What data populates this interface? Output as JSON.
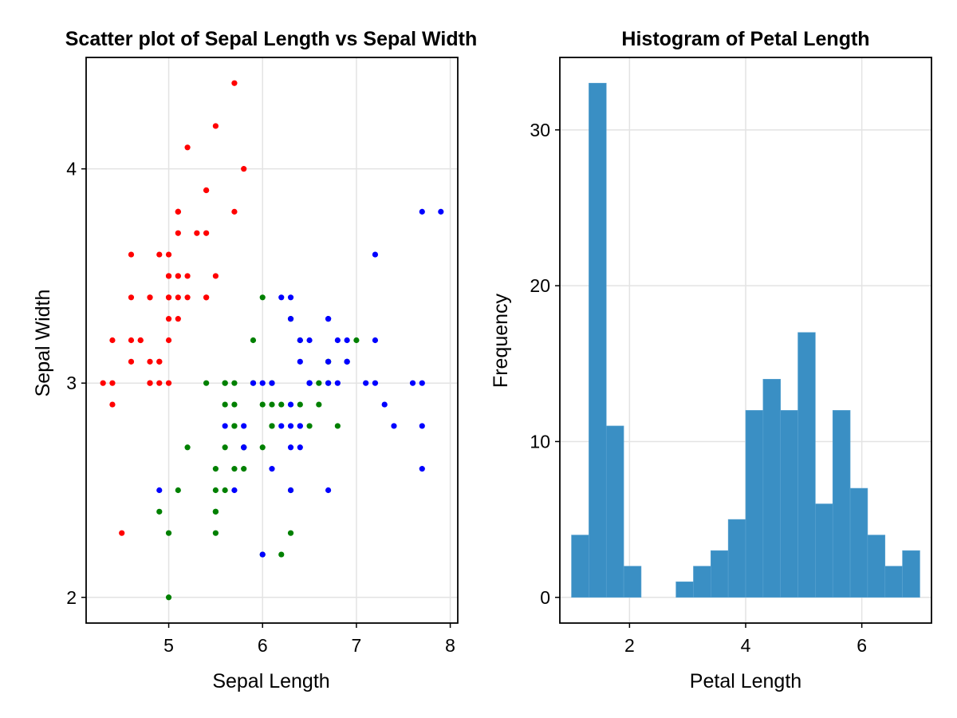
{
  "chart_data": [
    {
      "type": "scatter",
      "title": "Scatter plot of Sepal Length vs Sepal Width",
      "xlabel": "Sepal Length",
      "ylabel": "Sepal Width",
      "xlim": [
        4.12,
        8.08
      ],
      "ylim": [
        1.88,
        4.52
      ],
      "xticks": [
        5,
        6,
        7,
        8
      ],
      "yticks": [
        2,
        3,
        4
      ],
      "grid": true,
      "series": [
        {
          "color": "#ff0000",
          "points": [
            [
              5.1,
              3.5
            ],
            [
              4.9,
              3.0
            ],
            [
              4.7,
              3.2
            ],
            [
              4.6,
              3.1
            ],
            [
              5.0,
              3.6
            ],
            [
              5.4,
              3.9
            ],
            [
              4.6,
              3.4
            ],
            [
              5.0,
              3.4
            ],
            [
              4.4,
              2.9
            ],
            [
              4.9,
              3.1
            ],
            [
              5.4,
              3.7
            ],
            [
              4.8,
              3.4
            ],
            [
              4.8,
              3.0
            ],
            [
              4.3,
              3.0
            ],
            [
              5.8,
              4.0
            ],
            [
              5.7,
              4.4
            ],
            [
              5.4,
              3.9
            ],
            [
              5.1,
              3.5
            ],
            [
              5.7,
              3.8
            ],
            [
              5.1,
              3.8
            ],
            [
              5.4,
              3.4
            ],
            [
              5.1,
              3.7
            ],
            [
              4.6,
              3.6
            ],
            [
              5.1,
              3.3
            ],
            [
              4.8,
              3.4
            ],
            [
              5.0,
              3.0
            ],
            [
              5.0,
              3.4
            ],
            [
              5.2,
              3.5
            ],
            [
              5.2,
              3.4
            ],
            [
              4.7,
              3.2
            ],
            [
              4.8,
              3.1
            ],
            [
              5.4,
              3.4
            ],
            [
              5.2,
              4.1
            ],
            [
              5.5,
              4.2
            ],
            [
              4.9,
              3.1
            ],
            [
              5.0,
              3.2
            ],
            [
              5.5,
              3.5
            ],
            [
              4.9,
              3.6
            ],
            [
              4.4,
              3.0
            ],
            [
              5.1,
              3.4
            ],
            [
              5.0,
              3.5
            ],
            [
              4.5,
              2.3
            ],
            [
              4.4,
              3.2
            ],
            [
              5.0,
              3.5
            ],
            [
              5.1,
              3.8
            ],
            [
              4.8,
              3.0
            ],
            [
              5.1,
              3.8
            ],
            [
              4.6,
              3.2
            ],
            [
              5.3,
              3.7
            ],
            [
              5.0,
              3.3
            ]
          ]
        },
        {
          "color": "#008000",
          "points": [
            [
              7.0,
              3.2
            ],
            [
              6.4,
              3.2
            ],
            [
              6.9,
              3.1
            ],
            [
              5.5,
              2.3
            ],
            [
              6.5,
              2.8
            ],
            [
              5.7,
              2.8
            ],
            [
              6.3,
              3.3
            ],
            [
              4.9,
              2.4
            ],
            [
              6.6,
              2.9
            ],
            [
              5.2,
              2.7
            ],
            [
              5.0,
              2.0
            ],
            [
              5.9,
              3.0
            ],
            [
              6.0,
              2.2
            ],
            [
              6.1,
              2.9
            ],
            [
              5.6,
              2.9
            ],
            [
              6.7,
              3.1
            ],
            [
              5.6,
              3.0
            ],
            [
              5.8,
              2.7
            ],
            [
              6.2,
              2.2
            ],
            [
              5.6,
              2.5
            ],
            [
              5.9,
              3.2
            ],
            [
              6.1,
              2.8
            ],
            [
              6.3,
              2.5
            ],
            [
              6.1,
              2.8
            ],
            [
              6.4,
              2.9
            ],
            [
              6.6,
              3.0
            ],
            [
              6.8,
              2.8
            ],
            [
              6.7,
              3.0
            ],
            [
              6.0,
              2.9
            ],
            [
              5.7,
              2.6
            ],
            [
              5.5,
              2.4
            ],
            [
              5.5,
              2.4
            ],
            [
              5.8,
              2.7
            ],
            [
              6.0,
              2.7
            ],
            [
              5.4,
              3.0
            ],
            [
              6.0,
              3.4
            ],
            [
              6.7,
              3.1
            ],
            [
              6.3,
              2.3
            ],
            [
              5.6,
              3.0
            ],
            [
              5.5,
              2.5
            ],
            [
              5.5,
              2.6
            ],
            [
              6.1,
              3.0
            ],
            [
              5.8,
              2.6
            ],
            [
              5.0,
              2.3
            ],
            [
              5.6,
              2.7
            ],
            [
              5.7,
              3.0
            ],
            [
              5.7,
              2.9
            ],
            [
              6.2,
              2.9
            ],
            [
              5.1,
              2.5
            ],
            [
              5.7,
              2.8
            ]
          ]
        },
        {
          "color": "#0000ff",
          "points": [
            [
              6.3,
              3.3
            ],
            [
              5.8,
              2.7
            ],
            [
              7.1,
              3.0
            ],
            [
              6.3,
              2.9
            ],
            [
              6.5,
              3.0
            ],
            [
              7.6,
              3.0
            ],
            [
              4.9,
              2.5
            ],
            [
              7.3,
              2.9
            ],
            [
              6.7,
              2.5
            ],
            [
              7.2,
              3.6
            ],
            [
              6.5,
              3.2
            ],
            [
              6.4,
              2.7
            ],
            [
              6.8,
              3.0
            ],
            [
              5.7,
              2.5
            ],
            [
              5.8,
              2.8
            ],
            [
              6.4,
              3.2
            ],
            [
              6.5,
              3.0
            ],
            [
              7.7,
              3.8
            ],
            [
              7.7,
              2.6
            ],
            [
              6.0,
              2.2
            ],
            [
              6.9,
              3.2
            ],
            [
              5.6,
              2.8
            ],
            [
              7.7,
              2.8
            ],
            [
              6.3,
              2.7
            ],
            [
              6.7,
              3.3
            ],
            [
              7.2,
              3.2
            ],
            [
              6.2,
              2.8
            ],
            [
              6.1,
              3.0
            ],
            [
              6.4,
              2.8
            ],
            [
              7.2,
              3.0
            ],
            [
              7.4,
              2.8
            ],
            [
              7.9,
              3.8
            ],
            [
              6.4,
              2.8
            ],
            [
              6.3,
              2.8
            ],
            [
              6.1,
              2.6
            ],
            [
              7.7,
              3.0
            ],
            [
              6.3,
              3.4
            ],
            [
              6.4,
              3.1
            ],
            [
              6.0,
              3.0
            ],
            [
              6.9,
              3.1
            ],
            [
              6.7,
              3.1
            ],
            [
              6.9,
              3.1
            ],
            [
              5.8,
              2.7
            ],
            [
              6.8,
              3.2
            ],
            [
              6.7,
              3.3
            ],
            [
              6.7,
              3.0
            ],
            [
              6.3,
              2.5
            ],
            [
              6.5,
              3.0
            ],
            [
              6.2,
              3.4
            ],
            [
              5.9,
              3.0
            ]
          ]
        }
      ]
    },
    {
      "type": "bar",
      "title": "Histogram of Petal Length",
      "xlabel": "Petal Length",
      "ylabel": "Frequency",
      "xlim": [
        0.8,
        7.2
      ],
      "ylim": [
        -1.65,
        34.65
      ],
      "xticks": [
        2,
        4,
        6
      ],
      "yticks": [
        0,
        10,
        20,
        30
      ],
      "grid": true,
      "bar_color": "#3a8fc4",
      "bin_edges": [
        1.0,
        1.3,
        1.6,
        1.9,
        2.2,
        2.5,
        2.8,
        3.1,
        3.4,
        3.7,
        4.0,
        4.3,
        4.6,
        4.9,
        5.2,
        5.5,
        5.8,
        6.1,
        6.4,
        6.7,
        7.0
      ],
      "counts": [
        4,
        33,
        11,
        2,
        0,
        0,
        1,
        2,
        3,
        5,
        12,
        14,
        12,
        17,
        6,
        12,
        7,
        4,
        2,
        3
      ]
    }
  ]
}
